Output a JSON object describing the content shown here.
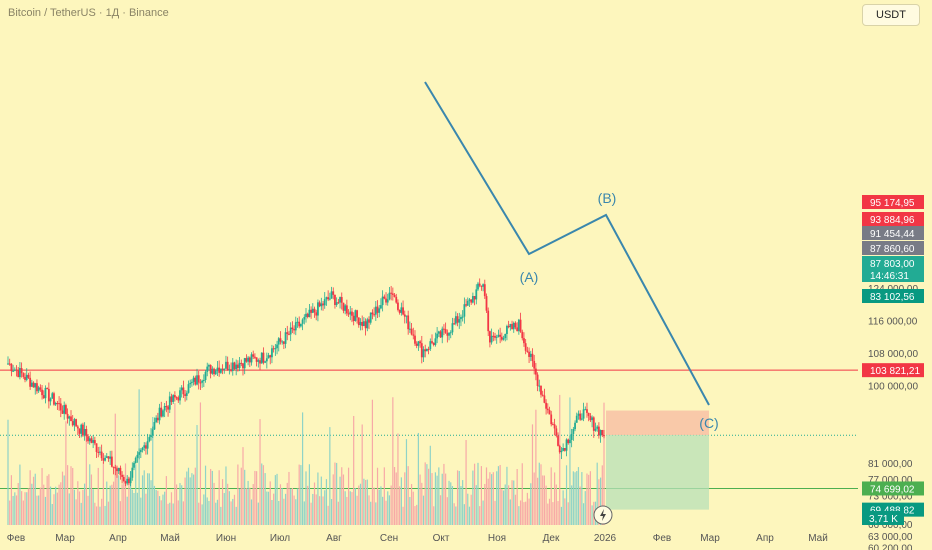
{
  "header": {
    "title": "Bitcoin / TetherUS · 1Д · Binance",
    "currency": "USDT"
  },
  "colors": {
    "up": "#22ab94",
    "down": "#f23645",
    "volUp": "#8fd3c7",
    "volDown": "#f7a9a7",
    "wave": "#3a87ad",
    "bg": "#fdf6bd"
  },
  "chart_data": {
    "type": "candlestick",
    "title": "Bitcoin / TetherUS · 1Д · Binance",
    "ylim": [
      58800,
      127500
    ],
    "y_ticks": [
      {
        "value": 124000,
        "label": "124 000,00"
      },
      {
        "value": 116000,
        "label": "116 000,00"
      },
      {
        "value": 108000,
        "label": "108 000,00"
      },
      {
        "value": 100000,
        "label": "100 000,00"
      },
      {
        "value": 81000,
        "label": "81 000,00"
      },
      {
        "value": 77000,
        "label": "77 000,00"
      },
      {
        "value": 73000,
        "label": "73 000,00"
      },
      {
        "value": 66000,
        "label": "66 000,00"
      },
      {
        "value": 63000,
        "label": "63 000,00"
      },
      {
        "value": 60200,
        "label": "60 200,00"
      }
    ],
    "x_ticks": [
      "Фев",
      "Мар",
      "Апр",
      "Май",
      "Июн",
      "Июл",
      "Авг",
      "Сен",
      "Окт",
      "Ноя",
      "Дек",
      "2026",
      "Фев",
      "Мар",
      "Апр",
      "Май"
    ],
    "key_path": [
      {
        "date": "Jan 25",
        "price": 105500
      },
      {
        "date": "Feb 25",
        "price": 96000
      },
      {
        "date": "Mar 25",
        "price": 83000
      },
      {
        "date": "Apr 8 25",
        "price": 76300
      },
      {
        "date": "Apr 25",
        "price": 94000
      },
      {
        "date": "May 25",
        "price": 104000
      },
      {
        "date": "Jun 25",
        "price": 107000
      },
      {
        "date": "Jul 14 25",
        "price": 122000
      },
      {
        "date": "Aug 25",
        "price": 115000
      },
      {
        "date": "Aug 14 25",
        "price": 123500
      },
      {
        "date": "Sep 1 25",
        "price": 108500
      },
      {
        "date": "Sep 25",
        "price": 115000
      },
      {
        "date": "Oct 6 25",
        "price": 125500
      },
      {
        "date": "Oct 10 25",
        "price": 111000
      },
      {
        "date": "Oct 27 25",
        "price": 115000
      },
      {
        "date": "Nov 21 25",
        "price": 84000
      },
      {
        "date": "Dec 3 25",
        "price": 93500
      },
      {
        "date": "Dec 20 25",
        "price": 87803
      }
    ],
    "price_levels": [
      {
        "value": 103821.21,
        "label": "103 821,21",
        "color": "#f23645",
        "line": true
      },
      {
        "value": 74699.02,
        "label": "74 699,02",
        "color": "#4caf50",
        "line": true
      },
      {
        "value": 87803.0,
        "label": "87 803,00",
        "color": "#22ab94",
        "line": false,
        "dotted": true,
        "countdown": "14:46:31"
      },
      {
        "value": 95174.95,
        "label": "95 174,95",
        "color": "#f23645"
      },
      {
        "value": 93884.96,
        "label": "93 884,96",
        "color": "#f23645"
      },
      {
        "value": 91454.44,
        "label": "91 454,44",
        "color": "#787b86"
      },
      {
        "value": 87860.6,
        "label": "87 860,60",
        "color": "#787b86"
      },
      {
        "value": 83102.56,
        "label": "83 102,56",
        "color": "#089981"
      },
      {
        "value": 69488.82,
        "label": "69 488,82",
        "color": "#089981"
      }
    ],
    "volume_label": "3,71 K",
    "wave_points": [
      {
        "label": "(A)",
        "price": 84000
      },
      {
        "label": "(B)",
        "price": 93884.96
      },
      {
        "label": "(C)",
        "price": 69488.82
      }
    ],
    "trade_zone": {
      "entry": 87860.6,
      "stop": 93884.96,
      "target": 69488.82
    }
  }
}
